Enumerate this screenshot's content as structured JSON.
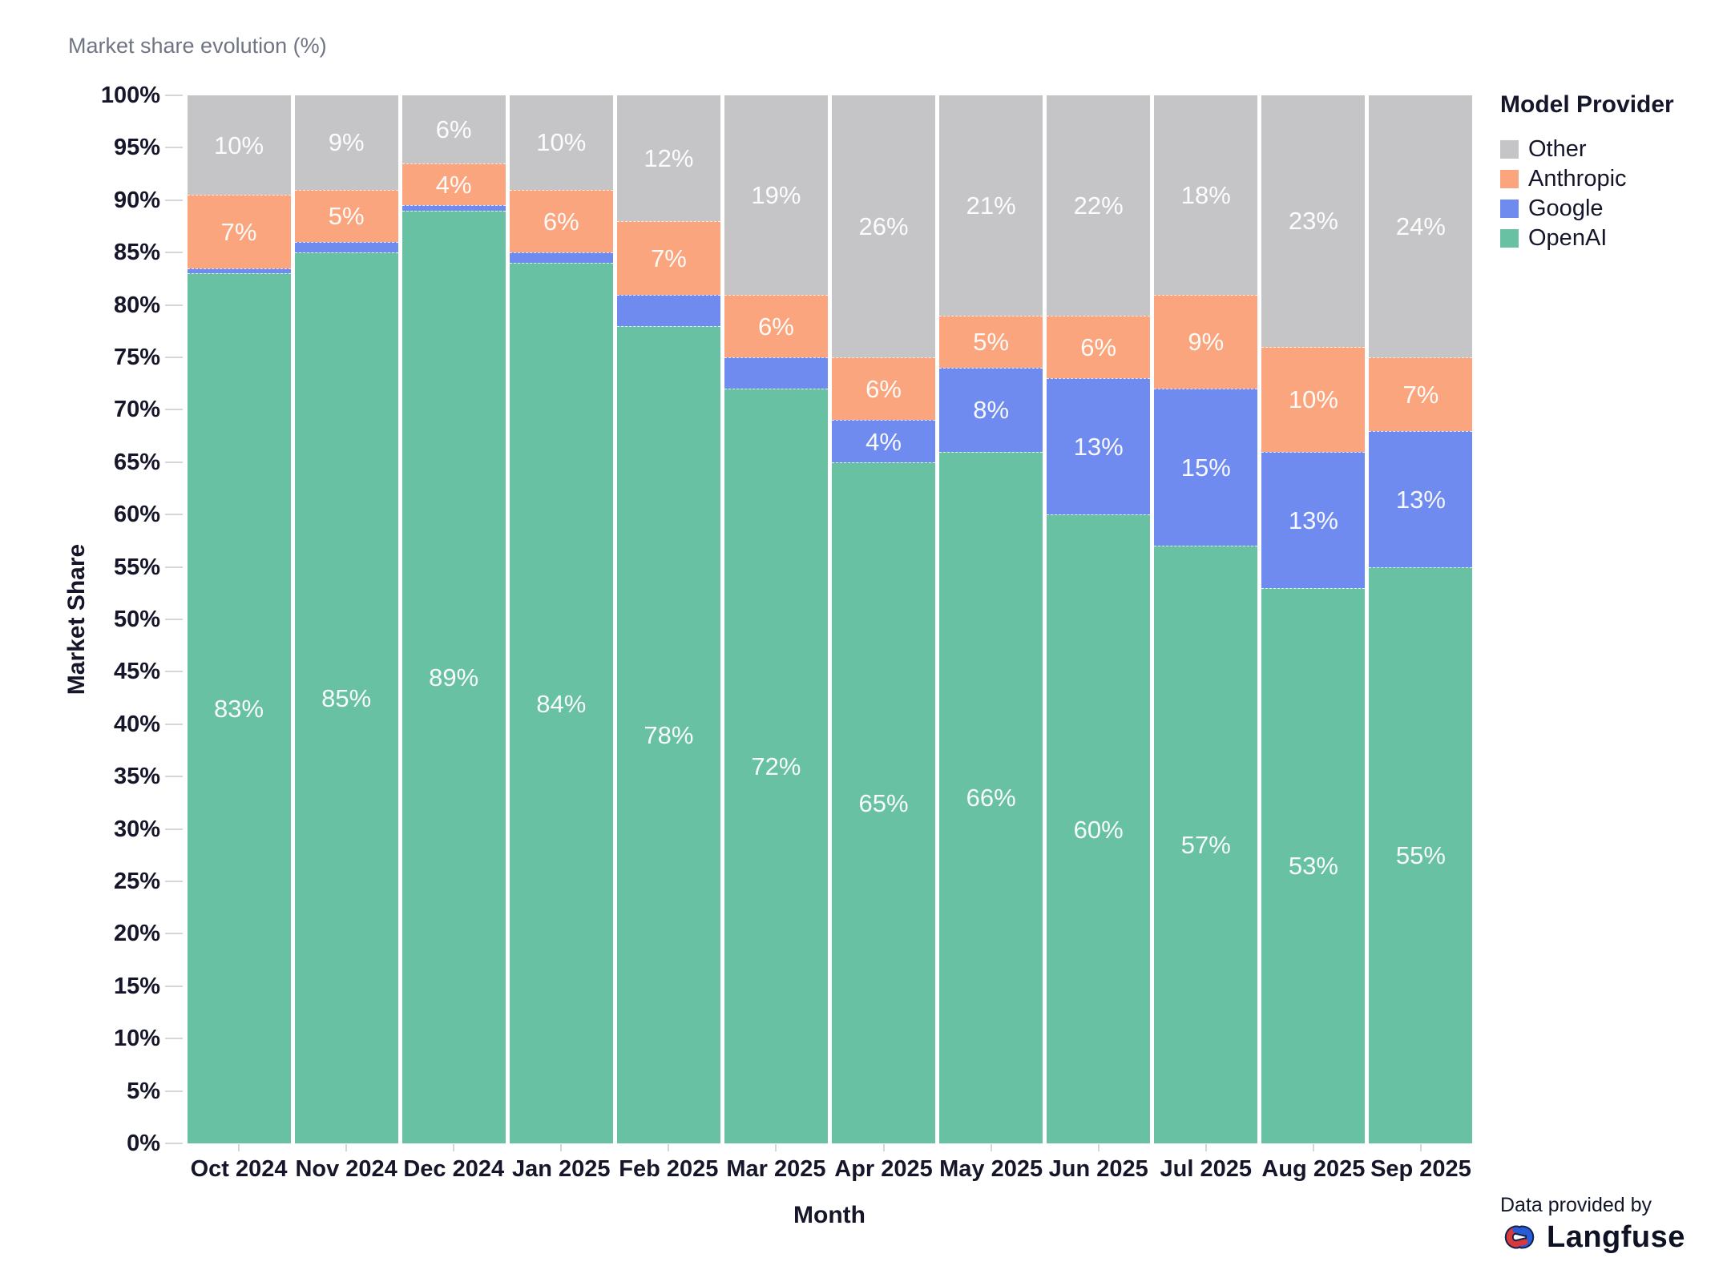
{
  "chart_data": {
    "type": "bar",
    "variant": "stacked-100",
    "title": "Market share evolution (%)",
    "xlabel": "Month",
    "ylabel": "Market Share",
    "ylim": [
      0,
      100
    ],
    "y_tick_step": 5,
    "y_ticks": [
      "0%",
      "5%",
      "10%",
      "15%",
      "20%",
      "25%",
      "30%",
      "35%",
      "40%",
      "45%",
      "50%",
      "55%",
      "60%",
      "65%",
      "70%",
      "75%",
      "80%",
      "85%",
      "90%",
      "95%",
      "100%"
    ],
    "categories": [
      "Oct 2024",
      "Nov 2024",
      "Dec 2024",
      "Jan 2025",
      "Feb 2025",
      "Mar 2025",
      "Apr 2025",
      "May 2025",
      "Jun 2025",
      "Jul 2025",
      "Aug 2025",
      "Sep 2025"
    ],
    "stack_order": [
      "OpenAI",
      "Google",
      "Anthropic",
      "Other"
    ],
    "series": [
      {
        "name": "Other",
        "color": "#c5c5c7",
        "values": [
          10,
          9,
          6,
          10,
          12,
          19,
          26,
          21,
          22,
          18,
          23,
          24
        ],
        "labels": [
          "10%",
          "9%",
          "6%",
          "10%",
          "12%",
          "19%",
          "26%",
          "21%",
          "22%",
          "18%",
          "23%",
          "24%"
        ]
      },
      {
        "name": "Anthropic",
        "color": "#faa57e",
        "values": [
          7,
          5,
          4,
          6,
          7,
          6,
          6,
          5,
          6,
          9,
          10,
          7
        ],
        "labels": [
          "7%",
          "5%",
          "4%",
          "6%",
          "7%",
          "6%",
          "6%",
          "5%",
          "6%",
          "9%",
          "10%",
          "7%"
        ]
      },
      {
        "name": "Google",
        "color": "#6f8bef",
        "values": [
          0.5,
          1,
          0.5,
          1,
          3,
          3,
          4,
          8,
          13,
          15,
          13,
          13
        ],
        "labels": [
          "",
          "",
          "",
          "",
          "",
          "",
          "4%",
          "8%",
          "13%",
          "15%",
          "13%",
          "13%"
        ]
      },
      {
        "name": "OpenAI",
        "color": "#69c1a3",
        "values": [
          83,
          85,
          89,
          84,
          78,
          72,
          65,
          66,
          60,
          57,
          53,
          55
        ],
        "labels": [
          "83%",
          "85%",
          "89%",
          "84%",
          "78%",
          "72%",
          "65%",
          "66%",
          "60%",
          "57%",
          "53%",
          "55%"
        ]
      }
    ],
    "legend": {
      "title": "Model Provider",
      "position": "right",
      "entries": [
        "Other",
        "Anthropic",
        "Google",
        "OpenAI"
      ]
    },
    "grid": false
  },
  "footer": {
    "credit": "Data provided by",
    "brand": "Langfuse"
  }
}
